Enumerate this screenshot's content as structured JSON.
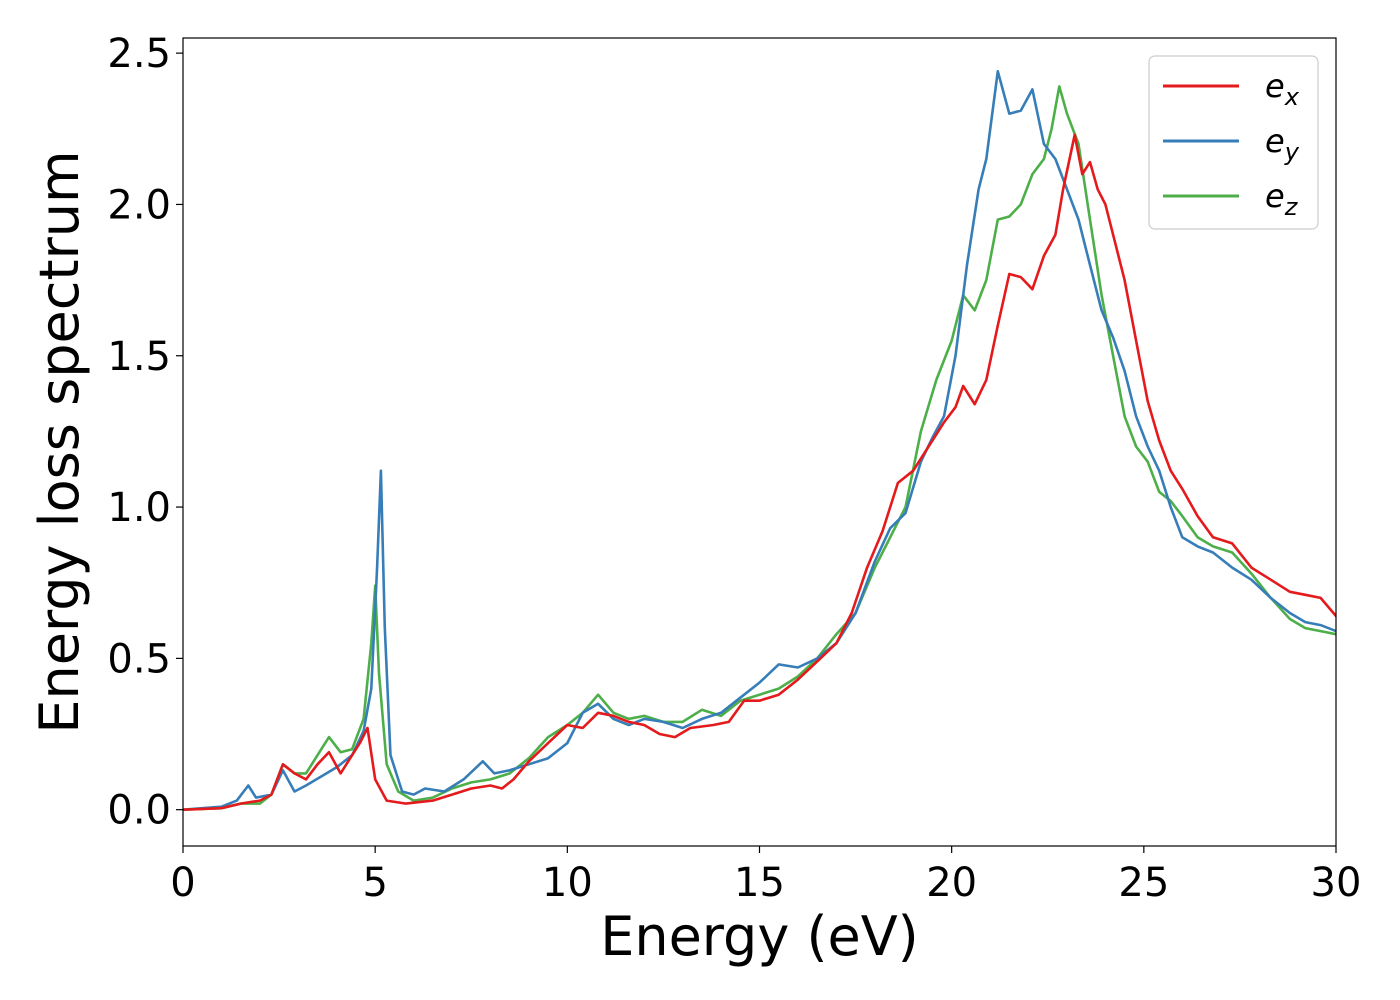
{
  "chart_data": {
    "type": "line",
    "title": "",
    "xlabel": "Energy (eV)",
    "ylabel": "Energy loss spectrum",
    "xlim": [
      0,
      30
    ],
    "ylim": [
      -0.12,
      2.55
    ],
    "xticks": [
      0,
      5,
      10,
      15,
      20,
      25,
      30
    ],
    "yticks": [
      0.0,
      0.5,
      1.0,
      1.5,
      2.0,
      2.5
    ],
    "xtick_labels": [
      "0",
      "5",
      "10",
      "15",
      "20",
      "25",
      "30"
    ],
    "ytick_labels": [
      "0.0",
      "0.5",
      "1.0",
      "1.5",
      "2.0",
      "2.5"
    ],
    "grid": false,
    "legend": {
      "position": "top-right"
    },
    "series": [
      {
        "name": "e",
        "subscript": "x",
        "color": "#e41a1c",
        "points": [
          [
            0,
            0.0
          ],
          [
            1,
            0.005
          ],
          [
            1.5,
            0.02
          ],
          [
            2,
            0.03
          ],
          [
            2.3,
            0.05
          ],
          [
            2.6,
            0.15
          ],
          [
            2.9,
            0.12
          ],
          [
            3.2,
            0.1
          ],
          [
            3.5,
            0.15
          ],
          [
            3.8,
            0.19
          ],
          [
            4.1,
            0.12
          ],
          [
            4.4,
            0.18
          ],
          [
            4.6,
            0.22
          ],
          [
            4.8,
            0.27
          ],
          [
            5.0,
            0.1
          ],
          [
            5.3,
            0.03
          ],
          [
            5.8,
            0.02
          ],
          [
            6.5,
            0.03
          ],
          [
            7,
            0.05
          ],
          [
            7.5,
            0.07
          ],
          [
            8,
            0.08
          ],
          [
            8.3,
            0.07
          ],
          [
            8.6,
            0.1
          ],
          [
            9,
            0.16
          ],
          [
            9.5,
            0.22
          ],
          [
            10,
            0.28
          ],
          [
            10.4,
            0.27
          ],
          [
            10.8,
            0.32
          ],
          [
            11.2,
            0.31
          ],
          [
            11.6,
            0.29
          ],
          [
            12,
            0.28
          ],
          [
            12.4,
            0.25
          ],
          [
            12.8,
            0.24
          ],
          [
            13.2,
            0.27
          ],
          [
            13.8,
            0.28
          ],
          [
            14.2,
            0.29
          ],
          [
            14.6,
            0.36
          ],
          [
            15,
            0.36
          ],
          [
            15.5,
            0.38
          ],
          [
            16,
            0.43
          ],
          [
            16.5,
            0.49
          ],
          [
            17,
            0.55
          ],
          [
            17.4,
            0.65
          ],
          [
            17.8,
            0.8
          ],
          [
            18.2,
            0.92
          ],
          [
            18.6,
            1.08
          ],
          [
            19,
            1.12
          ],
          [
            19.4,
            1.2
          ],
          [
            19.8,
            1.28
          ],
          [
            20.1,
            1.33
          ],
          [
            20.3,
            1.4
          ],
          [
            20.6,
            1.34
          ],
          [
            20.9,
            1.42
          ],
          [
            21.2,
            1.6
          ],
          [
            21.5,
            1.77
          ],
          [
            21.8,
            1.76
          ],
          [
            22.1,
            1.72
          ],
          [
            22.4,
            1.83
          ],
          [
            22.7,
            1.9
          ],
          [
            22.9,
            2.05
          ],
          [
            23.2,
            2.23
          ],
          [
            23.4,
            2.1
          ],
          [
            23.6,
            2.14
          ],
          [
            23.8,
            2.05
          ],
          [
            24,
            2.0
          ],
          [
            24.2,
            1.9
          ],
          [
            24.5,
            1.75
          ],
          [
            24.8,
            1.55
          ],
          [
            25.1,
            1.35
          ],
          [
            25.4,
            1.22
          ],
          [
            25.7,
            1.12
          ],
          [
            26,
            1.06
          ],
          [
            26.4,
            0.97
          ],
          [
            26.8,
            0.9
          ],
          [
            27.3,
            0.88
          ],
          [
            27.8,
            0.8
          ],
          [
            28.3,
            0.76
          ],
          [
            28.8,
            0.72
          ],
          [
            29.2,
            0.71
          ],
          [
            29.6,
            0.7
          ],
          [
            30,
            0.64
          ]
        ]
      },
      {
        "name": "e",
        "subscript": "y",
        "color": "#377eb8",
        "points": [
          [
            0,
            0.0
          ],
          [
            1,
            0.01
          ],
          [
            1.4,
            0.03
          ],
          [
            1.7,
            0.08
          ],
          [
            1.9,
            0.04
          ],
          [
            2.3,
            0.05
          ],
          [
            2.6,
            0.13
          ],
          [
            2.9,
            0.06
          ],
          [
            3.2,
            0.08
          ],
          [
            3.6,
            0.11
          ],
          [
            4,
            0.14
          ],
          [
            4.4,
            0.18
          ],
          [
            4.7,
            0.26
          ],
          [
            4.9,
            0.4
          ],
          [
            5.05,
            0.8
          ],
          [
            5.15,
            1.12
          ],
          [
            5.25,
            0.6
          ],
          [
            5.4,
            0.18
          ],
          [
            5.7,
            0.06
          ],
          [
            6,
            0.05
          ],
          [
            6.3,
            0.07
          ],
          [
            6.8,
            0.06
          ],
          [
            7.3,
            0.1
          ],
          [
            7.8,
            0.16
          ],
          [
            8.1,
            0.12
          ],
          [
            8.5,
            0.13
          ],
          [
            9,
            0.15
          ],
          [
            9.5,
            0.17
          ],
          [
            10,
            0.22
          ],
          [
            10.4,
            0.32
          ],
          [
            10.8,
            0.35
          ],
          [
            11.2,
            0.3
          ],
          [
            11.6,
            0.28
          ],
          [
            12,
            0.3
          ],
          [
            12.5,
            0.29
          ],
          [
            13,
            0.27
          ],
          [
            13.5,
            0.3
          ],
          [
            14,
            0.32
          ],
          [
            14.5,
            0.37
          ],
          [
            15,
            0.42
          ],
          [
            15.5,
            0.48
          ],
          [
            16,
            0.47
          ],
          [
            16.5,
            0.5
          ],
          [
            17,
            0.55
          ],
          [
            17.5,
            0.65
          ],
          [
            18,
            0.82
          ],
          [
            18.4,
            0.93
          ],
          [
            18.8,
            0.98
          ],
          [
            19.2,
            1.15
          ],
          [
            19.5,
            1.23
          ],
          [
            19.8,
            1.3
          ],
          [
            20.1,
            1.5
          ],
          [
            20.4,
            1.8
          ],
          [
            20.7,
            2.05
          ],
          [
            20.9,
            2.15
          ],
          [
            21.2,
            2.44
          ],
          [
            21.5,
            2.3
          ],
          [
            21.8,
            2.31
          ],
          [
            22.1,
            2.38
          ],
          [
            22.4,
            2.2
          ],
          [
            22.7,
            2.15
          ],
          [
            23,
            2.05
          ],
          [
            23.3,
            1.95
          ],
          [
            23.6,
            1.8
          ],
          [
            23.9,
            1.65
          ],
          [
            24.2,
            1.56
          ],
          [
            24.5,
            1.45
          ],
          [
            24.8,
            1.3
          ],
          [
            25.1,
            1.2
          ],
          [
            25.4,
            1.12
          ],
          [
            25.7,
            1.0
          ],
          [
            26,
            0.9
          ],
          [
            26.4,
            0.87
          ],
          [
            26.8,
            0.85
          ],
          [
            27.3,
            0.8
          ],
          [
            27.8,
            0.76
          ],
          [
            28.3,
            0.7
          ],
          [
            28.8,
            0.65
          ],
          [
            29.2,
            0.62
          ],
          [
            29.6,
            0.61
          ],
          [
            30,
            0.59
          ]
        ]
      },
      {
        "name": "e",
        "subscript": "z",
        "color": "#4daf4a",
        "points": [
          [
            0,
            0.0
          ],
          [
            1,
            0.005
          ],
          [
            1.5,
            0.02
          ],
          [
            2,
            0.02
          ],
          [
            2.3,
            0.05
          ],
          [
            2.6,
            0.15
          ],
          [
            2.9,
            0.12
          ],
          [
            3.2,
            0.12
          ],
          [
            3.5,
            0.18
          ],
          [
            3.8,
            0.24
          ],
          [
            4.1,
            0.19
          ],
          [
            4.4,
            0.2
          ],
          [
            4.7,
            0.3
          ],
          [
            4.9,
            0.55
          ],
          [
            5.0,
            0.74
          ],
          [
            5.1,
            0.45
          ],
          [
            5.3,
            0.15
          ],
          [
            5.6,
            0.06
          ],
          [
            6,
            0.03
          ],
          [
            6.5,
            0.04
          ],
          [
            7,
            0.07
          ],
          [
            7.5,
            0.09
          ],
          [
            8,
            0.1
          ],
          [
            8.5,
            0.12
          ],
          [
            9,
            0.17
          ],
          [
            9.5,
            0.24
          ],
          [
            10,
            0.28
          ],
          [
            10.4,
            0.32
          ],
          [
            10.8,
            0.38
          ],
          [
            11.2,
            0.32
          ],
          [
            11.6,
            0.3
          ],
          [
            12,
            0.31
          ],
          [
            12.5,
            0.29
          ],
          [
            13,
            0.29
          ],
          [
            13.5,
            0.33
          ],
          [
            14,
            0.31
          ],
          [
            14.5,
            0.36
          ],
          [
            15,
            0.38
          ],
          [
            15.5,
            0.4
          ],
          [
            16,
            0.44
          ],
          [
            16.5,
            0.5
          ],
          [
            17,
            0.58
          ],
          [
            17.5,
            0.65
          ],
          [
            18,
            0.8
          ],
          [
            18.4,
            0.9
          ],
          [
            18.8,
            1.0
          ],
          [
            19.2,
            1.25
          ],
          [
            19.6,
            1.42
          ],
          [
            20,
            1.55
          ],
          [
            20.3,
            1.7
          ],
          [
            20.6,
            1.65
          ],
          [
            20.9,
            1.75
          ],
          [
            21.2,
            1.95
          ],
          [
            21.5,
            1.96
          ],
          [
            21.8,
            2.0
          ],
          [
            22.1,
            2.1
          ],
          [
            22.4,
            2.15
          ],
          [
            22.6,
            2.25
          ],
          [
            22.8,
            2.39
          ],
          [
            23,
            2.3
          ],
          [
            23.3,
            2.2
          ],
          [
            23.6,
            1.95
          ],
          [
            23.9,
            1.7
          ],
          [
            24.2,
            1.5
          ],
          [
            24.5,
            1.3
          ],
          [
            24.8,
            1.2
          ],
          [
            25.1,
            1.15
          ],
          [
            25.4,
            1.05
          ],
          [
            25.7,
            1.02
          ],
          [
            26,
            0.97
          ],
          [
            26.4,
            0.9
          ],
          [
            26.8,
            0.87
          ],
          [
            27.3,
            0.85
          ],
          [
            27.8,
            0.78
          ],
          [
            28.3,
            0.7
          ],
          [
            28.8,
            0.63
          ],
          [
            29.2,
            0.6
          ],
          [
            29.6,
            0.59
          ],
          [
            30,
            0.58
          ]
        ]
      }
    ]
  }
}
